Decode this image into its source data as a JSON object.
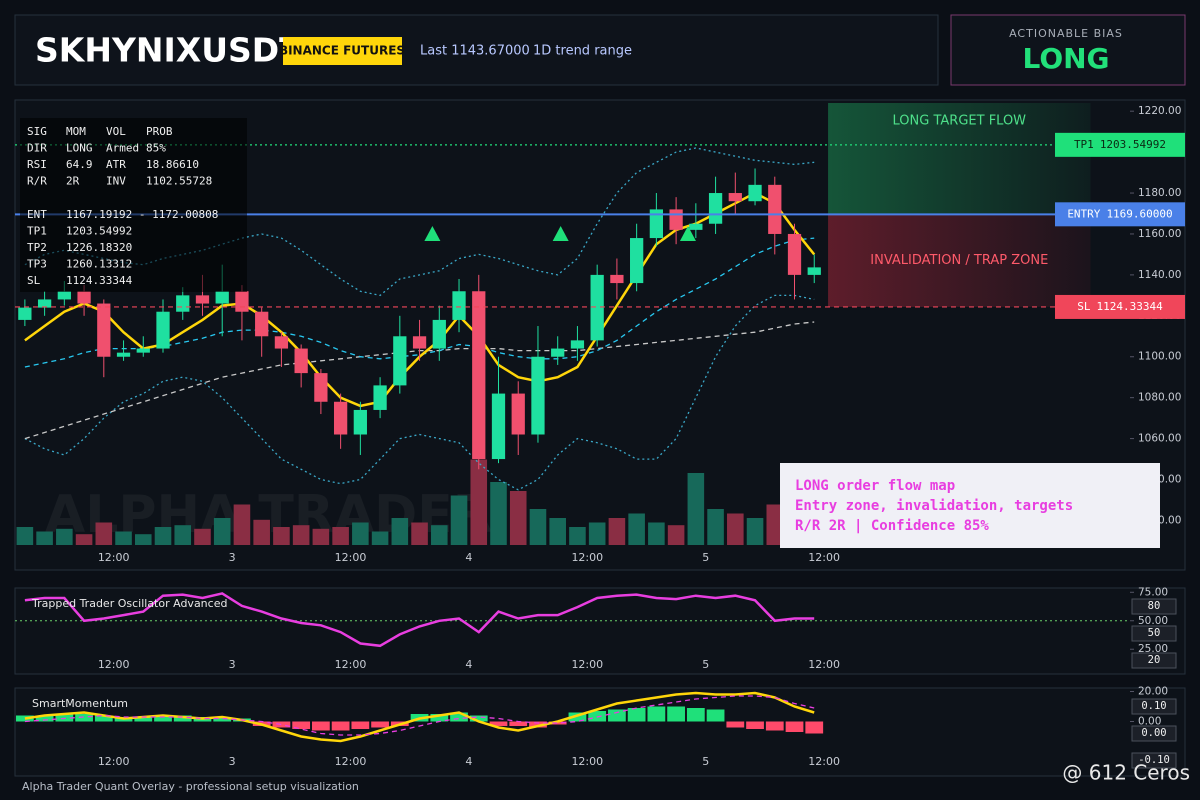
{
  "header": {
    "symbol": "SKHYNIXUSDT",
    "exchange": "BINANCE FUTURES",
    "last": "Last 1143.67000",
    "range": "1D trend range"
  },
  "bias": {
    "label": "ACTIONABLE BIAS",
    "value": "LONG"
  },
  "info": {
    "rows": [
      [
        "SIG",
        "MOM",
        "VOL",
        "PROB"
      ],
      [
        "DIR",
        "LONG",
        "Armed",
        "85%"
      ],
      [
        "RSI",
        "64.9",
        "ATR",
        "18.86610"
      ],
      [
        "R/R",
        "2R",
        "INV",
        "1102.55728"
      ],
      [
        "ENT",
        "1167.19192 - 1172.00808"
      ],
      [
        "TP1",
        "1203.54992"
      ],
      [
        "TP2",
        "1226.18320"
      ],
      [
        "TP3",
        "1260.13312"
      ],
      [
        "SL",
        "1124.33344"
      ]
    ]
  },
  "note": {
    "lines": [
      "LONG order flow map",
      "Entry zone, invalidation, targets",
      "R/R 2R | Confidence 85%"
    ]
  },
  "watermark": "ALPHA TRADER",
  "footer": "Alpha Trader Quant Overlay - professional setup visualization",
  "credit": "@ 612 Ceros",
  "chart_data": [
    {
      "type": "candlestick",
      "x": [
        3,
        5,
        7,
        9,
        11,
        13,
        15,
        17,
        19,
        21,
        23,
        25,
        27,
        29,
        31,
        33,
        35,
        37,
        39,
        41,
        43,
        45,
        47,
        49,
        51,
        53,
        55,
        57,
        59,
        61,
        63,
        65,
        67,
        69,
        71,
        73,
        75,
        77,
        79,
        81,
        83
      ],
      "open": [
        1118,
        1124,
        1128,
        1132,
        1126,
        1100,
        1102,
        1104,
        1122,
        1130,
        1126,
        1132,
        1122,
        1110,
        1104,
        1092,
        1078,
        1062,
        1074,
        1086,
        1110,
        1104,
        1118,
        1132,
        1050,
        1082,
        1062,
        1100,
        1104,
        1108,
        1140,
        1136,
        1158,
        1172,
        1162,
        1165,
        1180,
        1176,
        1184,
        1160,
        1140
      ],
      "high": [
        1128,
        1132,
        1137,
        1135,
        1128,
        1108,
        1110,
        1128,
        1134,
        1140,
        1145,
        1135,
        1124,
        1112,
        1106,
        1094,
        1082,
        1078,
        1090,
        1120,
        1118,
        1125,
        1138,
        1140,
        1100,
        1088,
        1115,
        1110,
        1115,
        1145,
        1148,
        1165,
        1180,
        1178,
        1175,
        1188,
        1190,
        1192,
        1188,
        1165,
        1150
      ],
      "low": [
        1115,
        1120,
        1125,
        1120,
        1090,
        1098,
        1100,
        1102,
        1118,
        1120,
        1110,
        1108,
        1100,
        1095,
        1085,
        1072,
        1055,
        1052,
        1070,
        1082,
        1098,
        1098,
        1112,
        1045,
        1048,
        1052,
        1058,
        1096,
        1098,
        1105,
        1128,
        1132,
        1154,
        1155,
        1158,
        1160,
        1170,
        1174,
        1150,
        1128,
        1136
      ],
      "close": [
        1124,
        1128,
        1132,
        1126,
        1100,
        1102,
        1104,
        1122,
        1130,
        1126,
        1132,
        1122,
        1110,
        1104,
        1092,
        1078,
        1062,
        1074,
        1086,
        1110,
        1104,
        1118,
        1132,
        1050,
        1082,
        1062,
        1100,
        1104,
        1108,
        1140,
        1136,
        1158,
        1172,
        1162,
        1165,
        1180,
        1176,
        1184,
        1160,
        1140,
        1143.67
      ],
      "volume": [
        20,
        15,
        18,
        12,
        25,
        15,
        12,
        20,
        22,
        18,
        30,
        45,
        28,
        20,
        22,
        18,
        20,
        25,
        15,
        30,
        25,
        22,
        55,
        95,
        70,
        60,
        40,
        30,
        20,
        25,
        30,
        35,
        25,
        22,
        80,
        40,
        35,
        30,
        45,
        38,
        30
      ],
      "volume_lim": [
        0,
        100
      ],
      "colors": {
        "up": "#1fe0a0",
        "down": "#f0506e",
        "volume_up": "#17695a",
        "volume_down": "#8a2e44"
      },
      "series": [
        {
          "color": "#3aa8c8",
          "style": "dotted",
          "values": [
            1145,
            1150,
            1152,
            1150,
            1148,
            1146,
            1145,
            1148,
            1150,
            1152,
            1155,
            1158,
            1160,
            1158,
            1152,
            1145,
            1138,
            1132,
            1130,
            1138,
            1140,
            1142,
            1148,
            1150,
            1148,
            1145,
            1142,
            1140,
            1148,
            1165,
            1180,
            1190,
            1195,
            1200,
            1202,
            1200,
            1198,
            1196,
            1195,
            1194,
            1195
          ]
        },
        {
          "color": "#3aa8c8",
          "style": "dotted",
          "values": [
            1060,
            1055,
            1052,
            1060,
            1070,
            1078,
            1082,
            1088,
            1090,
            1088,
            1080,
            1070,
            1060,
            1050,
            1045,
            1040,
            1038,
            1040,
            1050,
            1060,
            1062,
            1060,
            1058,
            1048,
            1040,
            1035,
            1040,
            1052,
            1060,
            1058,
            1055,
            1050,
            1050,
            1060,
            1080,
            1100,
            1115,
            1125,
            1130,
            1130,
            1128
          ]
        },
        {
          "color": "#c8c8c8",
          "style": "dashed",
          "values": [
            1060,
            1063,
            1066,
            1069,
            1072,
            1075,
            1078,
            1081,
            1084,
            1087,
            1090,
            1092,
            1094,
            1096,
            1097,
            1098,
            1099,
            1100,
            1101,
            1102,
            1103,
            1103,
            1104,
            1104,
            1104,
            1103,
            1103,
            1103,
            1103,
            1104,
            1105,
            1106,
            1107,
            1108,
            1109,
            1110,
            1111,
            1112,
            1114,
            1116,
            1117
          ]
        },
        {
          "color": "#28c8f0",
          "style": "dashed",
          "values": [
            1095,
            1097,
            1099,
            1102,
            1104,
            1104,
            1104,
            1105,
            1107,
            1109,
            1112,
            1113,
            1113,
            1112,
            1110,
            1107,
            1103,
            1100,
            1099,
            1100,
            1101,
            1103,
            1106,
            1105,
            1102,
            1100,
            1099,
            1099,
            1100,
            1103,
            1108,
            1115,
            1122,
            1128,
            1133,
            1138,
            1144,
            1150,
            1154,
            1157,
            1158
          ]
        },
        {
          "color": "#ffd60a",
          "style": "solid",
          "values": [
            1108,
            1115,
            1122,
            1126,
            1122,
            1112,
            1104,
            1106,
            1112,
            1118,
            1125,
            1126,
            1120,
            1112,
            1102,
            1090,
            1080,
            1076,
            1078,
            1090,
            1100,
            1108,
            1120,
            1110,
            1096,
            1090,
            1088,
            1090,
            1095,
            1110,
            1125,
            1140,
            1155,
            1162,
            1165,
            1170,
            1175,
            1180,
            1175,
            1162,
            1150
          ]
        }
      ],
      "signals": [
        {
          "x": 44.3,
          "y": 1160
        },
        {
          "x": 57.3,
          "y": 1160
        },
        {
          "x": 70.2,
          "y": 1160
        }
      ],
      "signal_color": "#1fe07a",
      "levels": [
        {
          "name": "TP1",
          "value": 1203.54992,
          "value_label": "1203.54992",
          "color": "#1fe07a",
          "text_color": "#0b2a14",
          "style": "dotted"
        },
        {
          "name": "ENTRY",
          "value": 1169.6,
          "value_label": "1169.60000",
          "color": "#4a80e8",
          "text_color": "#ffffff",
          "style": "solid"
        },
        {
          "name": "SL",
          "value": 1124.33344,
          "value_label": "1124.33344",
          "color": "#f0465a",
          "text_color": "#ffffff",
          "style": "dashed"
        }
      ],
      "zones": {
        "x": [
          84.4,
          111
        ],
        "target_label": "LONG TARGET FLOW",
        "trap_label": "INVALIDATION / TRAP ZONE"
      },
      "xlim": [
        2,
        115
      ],
      "xticks": [
        {
          "value": 12,
          "label": "12:00"
        },
        {
          "value": 24,
          "label": "3"
        },
        {
          "value": 36,
          "label": "12:00"
        },
        {
          "value": 48,
          "label": "4"
        },
        {
          "value": 60,
          "label": "12:00"
        },
        {
          "value": 72,
          "label": "5"
        },
        {
          "value": 84,
          "label": "12:00"
        }
      ],
      "ylim": [
        1008,
        1224
      ],
      "yticks": [
        {
          "value": 1020,
          "label": "1020.00"
        },
        {
          "value": 1040,
          "label": "1040.00"
        },
        {
          "value": 1060,
          "label": "1060.00"
        },
        {
          "value": 1080,
          "label": "1080.00"
        },
        {
          "value": 1100,
          "label": "1100.00"
        },
        {
          "value": 1120,
          "label": "1120.00"
        },
        {
          "value": 1140,
          "label": "1140.00"
        },
        {
          "value": 1160,
          "label": "1160.00"
        },
        {
          "value": 1180,
          "label": "1180.00"
        },
        {
          "value": 1200,
          "label": "1200.00"
        },
        {
          "value": 1220,
          "label": "1220.00"
        }
      ]
    },
    {
      "type": "line",
      "title": "Trapped Trader Oscillator Advanced",
      "x": [
        3,
        5,
        7,
        9,
        11,
        13,
        15,
        17,
        19,
        21,
        23,
        25,
        27,
        29,
        31,
        33,
        35,
        37,
        39,
        41,
        43,
        45,
        47,
        49,
        51,
        53,
        55,
        57,
        59,
        61,
        63,
        65,
        67,
        69,
        71,
        73,
        75,
        77,
        79,
        81,
        83
      ],
      "values": [
        68,
        70,
        70,
        50,
        52,
        55,
        58,
        72,
        73,
        70,
        74,
        63,
        58,
        52,
        48,
        46,
        40,
        30,
        28,
        38,
        45,
        50,
        52,
        40,
        58,
        52,
        55,
        55,
        62,
        70,
        72,
        73,
        70,
        69,
        72,
        70,
        72,
        68,
        50,
        52,
        52
      ],
      "color": "#e83ee0",
      "reference": 50,
      "reference_color": "#6ad06a",
      "badges": [
        "80",
        "50",
        "20"
      ],
      "xlim": [
        2,
        115
      ],
      "xticks": [
        {
          "value": 12,
          "label": "12:00"
        },
        {
          "value": 24,
          "label": "3"
        },
        {
          "value": 36,
          "label": "12:00"
        },
        {
          "value": 48,
          "label": "4"
        },
        {
          "value": 60,
          "label": "12:00"
        },
        {
          "value": 72,
          "label": "5"
        },
        {
          "value": 84,
          "label": "12:00"
        }
      ],
      "ylim": [
        5,
        77
      ],
      "yticks": [
        {
          "value": 25,
          "label": "25.00"
        },
        {
          "value": 50,
          "label": "50.00"
        },
        {
          "value": 75,
          "label": "75.00"
        }
      ]
    },
    {
      "type": "histogram",
      "title": "SmartMomentum",
      "x": [
        3,
        5,
        7,
        9,
        11,
        13,
        15,
        17,
        19,
        21,
        23,
        25,
        27,
        29,
        31,
        33,
        35,
        37,
        39,
        41,
        43,
        45,
        47,
        49,
        51,
        53,
        55,
        57,
        59,
        61,
        63,
        65,
        67,
        69,
        71,
        73,
        75,
        77,
        79,
        81,
        83
      ],
      "values": [
        4,
        4,
        5,
        5,
        4,
        3,
        3,
        4,
        4,
        3,
        3,
        2,
        -3,
        -4,
        -5,
        -6,
        -6,
        -5,
        -4,
        -3,
        5,
        5,
        6,
        4,
        -3,
        -3,
        -4,
        -2,
        6,
        7,
        8,
        9,
        10,
        10,
        9,
        8,
        -4,
        -5,
        -6,
        -7,
        -8
      ],
      "colors": {
        "up": "#1fe07a",
        "down": "#ff4a6a"
      },
      "series": [
        {
          "color": "#ffd60a",
          "style": "solid",
          "values": [
            2,
            4,
            5,
            6,
            4,
            2,
            3,
            4,
            3,
            2,
            3,
            1,
            -2,
            -6,
            -10,
            -12,
            -13,
            -10,
            -6,
            -2,
            2,
            4,
            6,
            0,
            -4,
            -6,
            -3,
            0,
            4,
            8,
            12,
            14,
            16,
            18,
            19,
            18,
            18,
            19,
            16,
            10,
            6
          ]
        },
        {
          "color": "#e83ee0",
          "style": "dashed",
          "values": [
            0,
            1,
            2,
            3,
            4,
            3,
            3,
            3,
            3,
            2,
            2,
            1,
            0,
            -2,
            -5,
            -8,
            -9,
            -9,
            -8,
            -6,
            -3,
            0,
            2,
            3,
            2,
            0,
            -1,
            -1,
            0,
            3,
            6,
            9,
            11,
            13,
            15,
            16,
            17,
            17,
            16,
            12,
            9
          ]
        }
      ],
      "badges": [
        "0.10",
        "0.00",
        "-0.10"
      ],
      "xlim": [
        2,
        115
      ],
      "xticks": [
        {
          "value": 12,
          "label": "12:00"
        },
        {
          "value": 24,
          "label": "3"
        },
        {
          "value": 36,
          "label": "12:00"
        },
        {
          "value": 48,
          "label": "4"
        },
        {
          "value": 60,
          "label": "12:00"
        },
        {
          "value": 72,
          "label": "5"
        },
        {
          "value": 84,
          "label": "12:00"
        }
      ],
      "ylim": [
        -19,
        21
      ],
      "yticks": [
        {
          "value": 0,
          "label": "0.00"
        },
        {
          "value": 20,
          "label": "20.00"
        }
      ]
    }
  ]
}
